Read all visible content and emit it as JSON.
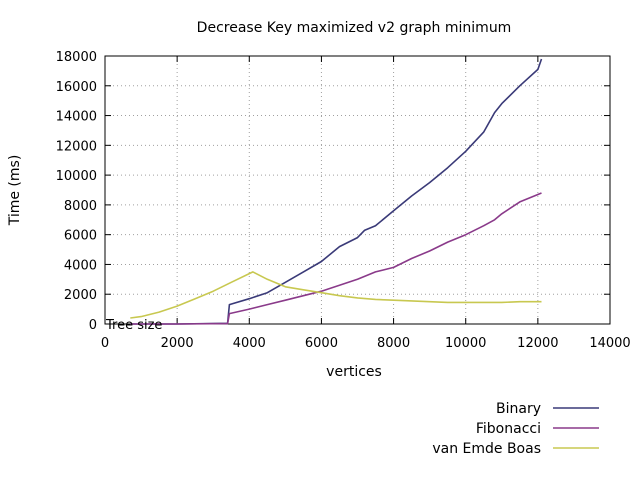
{
  "chart_data": {
    "type": "line",
    "title": "Decrease Key maximized v2 graph minimum",
    "xlabel": "vertices",
    "ylabel": "Time (ms)",
    "xlim": [
      0,
      14000
    ],
    "ylim": [
      0,
      18000
    ],
    "xticks": [
      "0",
      "2000",
      "4000",
      "6000",
      "8000",
      "10000",
      "12000",
      "14000"
    ],
    "yticks": [
      "0",
      "2000",
      "4000",
      "6000",
      "8000",
      "10000",
      "12000",
      "14000",
      "16000",
      "18000"
    ],
    "grid": true,
    "legend": "bottom-right, below plot",
    "annotation": "Tree size",
    "series": [
      {
        "name": "Binary",
        "color": "#3a3a78",
        "x": [
          700,
          2000,
          3400,
          3450,
          4000,
          4500,
          5000,
          5500,
          6000,
          6500,
          7000,
          7200,
          7500,
          8000,
          8500,
          9000,
          9500,
          10000,
          10500,
          10800,
          11000,
          11500,
          12000,
          12100
        ],
        "y": [
          0,
          0,
          50,
          1300,
          1700,
          2100,
          2800,
          3500,
          4200,
          5200,
          5800,
          6300,
          6600,
          7600,
          8600,
          9500,
          10500,
          11600,
          12900,
          14200,
          14800,
          16000,
          17100,
          17800
        ]
      },
      {
        "name": "Fibonacci",
        "color": "#8a3a8a",
        "x": [
          700,
          2000,
          3400,
          3450,
          4000,
          4500,
          5000,
          5500,
          6000,
          6500,
          7000,
          7500,
          8000,
          8500,
          9000,
          9500,
          10000,
          10500,
          10800,
          11000,
          11500,
          12000,
          12100
        ],
        "y": [
          0,
          0,
          30,
          700,
          1000,
          1300,
          1600,
          1900,
          2200,
          2600,
          3000,
          3500,
          3800,
          4400,
          4900,
          5500,
          6000,
          6600,
          7000,
          7400,
          8200,
          8700,
          8800
        ]
      },
      {
        "name": "van Emde Boas",
        "color": "#c8c850",
        "x": [
          700,
          1000,
          1500,
          2000,
          2500,
          3000,
          3500,
          4100,
          4500,
          5000,
          5500,
          6000,
          6500,
          7000,
          7500,
          8000,
          8500,
          9000,
          9500,
          10000,
          10500,
          11000,
          11500,
          12000,
          12100
        ],
        "y": [
          400,
          500,
          800,
          1200,
          1700,
          2200,
          2800,
          3500,
          3000,
          2500,
          2300,
          2100,
          1900,
          1750,
          1650,
          1600,
          1550,
          1500,
          1450,
          1450,
          1450,
          1450,
          1500,
          1500,
          1500
        ]
      }
    ]
  }
}
